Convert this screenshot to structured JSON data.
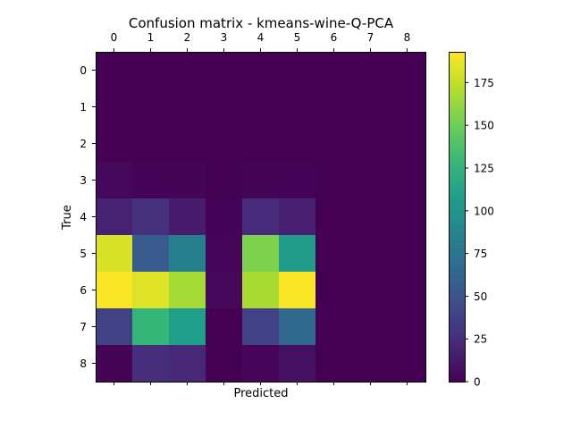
{
  "chart_data": {
    "type": "heatmap",
    "title": "Confusion matrix - kmeans-wine-Q-PCA",
    "xlabel": "Predicted",
    "ylabel": "True",
    "x_categories": [
      "0",
      "1",
      "2",
      "3",
      "4",
      "5",
      "6",
      "7",
      "8"
    ],
    "y_categories": [
      "0",
      "1",
      "2",
      "3",
      "4",
      "5",
      "6",
      "7",
      "8"
    ],
    "values": [
      [
        0,
        0,
        0,
        0,
        0,
        0,
        0,
        0,
        0
      ],
      [
        0,
        0,
        0,
        0,
        0,
        0,
        0,
        0,
        0
      ],
      [
        0,
        0,
        0,
        0,
        0,
        0,
        0,
        0,
        0
      ],
      [
        4,
        1,
        2,
        0,
        2,
        1,
        0,
        0,
        0
      ],
      [
        18,
        28,
        15,
        1,
        23,
        17,
        0,
        0,
        0
      ],
      [
        182,
        55,
        83,
        3,
        155,
        105,
        0,
        0,
        0
      ],
      [
        192,
        184,
        167,
        4,
        168,
        192,
        0,
        0,
        0
      ],
      [
        37,
        128,
        107,
        0,
        38,
        65,
        0,
        0,
        0
      ],
      [
        2,
        25,
        22,
        0,
        3,
        8,
        0,
        0,
        0
      ]
    ],
    "colormap": "viridis",
    "colorbar": {
      "range": [
        0,
        193
      ],
      "ticks": [
        0,
        25,
        50,
        75,
        100,
        125,
        150,
        175
      ]
    },
    "x_tick_position": "top",
    "grid": false
  }
}
